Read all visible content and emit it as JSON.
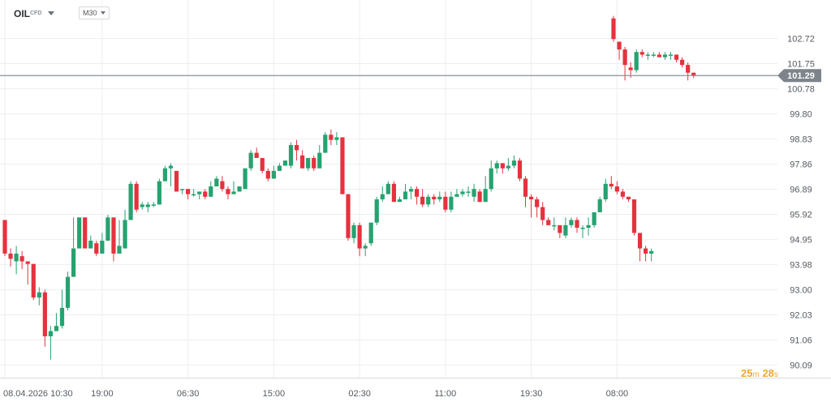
{
  "header": {
    "symbol": "OIL",
    "symbol_tag": "CFD",
    "timeframe": "M30"
  },
  "countdown": {
    "minutes": "25",
    "minutes_unit": "m",
    "seconds": "28",
    "seconds_unit": "s"
  },
  "colors": {
    "up": "#26a270",
    "down": "#e5323e",
    "grid": "#eceef1",
    "price_line": "#8a9098",
    "price_tag_bg": "#7d848c",
    "axis_text": "#555a61"
  },
  "chart_data": {
    "type": "candlestick",
    "title": "",
    "ylim": [
      89.6,
      103.9
    ],
    "y_ticks": [
      "102.72",
      "101.75",
      "100.78",
      "99.80",
      "98.83",
      "97.86",
      "96.89",
      "95.92",
      "94.95",
      "93.98",
      "93.00",
      "92.03",
      "91.06",
      "90.09"
    ],
    "x_ticks": [
      {
        "label": "08.04.2026 10:30",
        "index": 0
      },
      {
        "label": "19:00",
        "index": 17
      },
      {
        "label": "06:30",
        "index": 32
      },
      {
        "label": "15:00",
        "index": 47
      },
      {
        "label": "02:30",
        "index": 62
      },
      {
        "label": "11:00",
        "index": 77
      },
      {
        "label": "19:30",
        "index": 92
      },
      {
        "label": "08:00",
        "index": 107
      }
    ],
    "current_price": 101.29,
    "current_price_label": "101.29",
    "candles": [
      [
        95.7,
        94.4,
        95.7,
        94.3
      ],
      [
        94.4,
        94.2,
        94.6,
        93.9
      ],
      [
        94.1,
        94.4,
        94.7,
        93.6
      ],
      [
        94.3,
        94.1,
        94.5,
        93.8
      ],
      [
        94.1,
        94.0,
        94.1,
        93.2
      ],
      [
        94.0,
        92.7,
        94.0,
        92.6
      ],
      [
        92.7,
        92.9,
        93.1,
        92.4
      ],
      [
        92.9,
        91.2,
        93.0,
        90.8
      ],
      [
        91.2,
        91.4,
        91.6,
        90.3
      ],
      [
        91.4,
        91.6,
        92.1,
        91.5
      ],
      [
        91.6,
        92.3,
        93.0,
        91.5
      ],
      [
        92.3,
        93.5,
        93.7,
        92.2
      ],
      [
        93.5,
        94.6,
        95.8,
        93.5
      ],
      [
        94.6,
        95.8,
        95.8,
        94.6
      ],
      [
        95.8,
        94.6,
        95.8,
        94.6
      ],
      [
        94.6,
        94.9,
        95.1,
        94.6
      ],
      [
        94.8,
        94.4,
        94.9,
        94.3
      ],
      [
        94.4,
        94.9,
        95.2,
        94.4
      ],
      [
        94.9,
        95.8,
        95.9,
        94.9
      ],
      [
        95.8,
        94.4,
        95.8,
        94.1
      ],
      [
        94.4,
        94.7,
        95.7,
        94.6
      ],
      [
        94.6,
        95.7,
        96.1,
        94.6
      ],
      [
        95.7,
        97.1,
        97.2,
        95.7
      ],
      [
        97.1,
        96.1,
        97.2,
        96.0
      ],
      [
        96.2,
        96.3,
        96.4,
        96.1
      ],
      [
        96.2,
        96.3,
        96.4,
        96.0
      ],
      [
        96.3,
        96.3,
        96.4,
        96.2
      ],
      [
        96.3,
        97.2,
        97.3,
        96.3
      ],
      [
        97.2,
        97.7,
        97.8,
        97.3
      ],
      [
        97.7,
        97.8,
        97.9,
        97.0
      ],
      [
        97.6,
        96.8,
        97.6,
        96.8
      ],
      [
        96.9,
        96.9,
        96.9,
        96.7
      ],
      [
        96.9,
        96.7,
        96.9,
        96.5
      ],
      [
        96.7,
        96.7,
        96.9,
        96.6
      ],
      [
        96.7,
        96.8,
        96.8,
        96.5
      ],
      [
        96.8,
        96.6,
        96.9,
        96.5
      ],
      [
        96.6,
        97.0,
        97.2,
        96.6
      ],
      [
        97.0,
        97.3,
        97.4,
        97.0
      ],
      [
        97.2,
        96.9,
        97.4,
        96.8
      ],
      [
        96.9,
        96.7,
        97.0,
        96.5
      ],
      [
        96.7,
        96.8,
        97.2,
        96.7
      ],
      [
        96.8,
        97.0,
        97.0,
        96.8
      ],
      [
        96.9,
        97.7,
        97.7,
        96.9
      ],
      [
        97.7,
        98.3,
        98.4,
        97.6
      ],
      [
        98.3,
        98.1,
        98.5,
        98.1
      ],
      [
        98.1,
        97.6,
        98.1,
        97.5
      ],
      [
        97.6,
        97.3,
        97.7,
        97.2
      ],
      [
        97.3,
        97.6,
        97.8,
        97.3
      ],
      [
        97.6,
        97.8,
        97.9,
        97.7
      ],
      [
        97.8,
        98.0,
        98.0,
        97.8
      ],
      [
        97.8,
        98.6,
        98.7,
        97.7
      ],
      [
        98.6,
        98.4,
        98.8,
        98.0
      ],
      [
        98.2,
        97.7,
        98.4,
        97.7
      ],
      [
        97.7,
        98.1,
        98.1,
        97.6
      ],
      [
        98.1,
        97.7,
        98.2,
        97.6
      ],
      [
        97.7,
        98.3,
        98.6,
        97.7
      ],
      [
        98.3,
        99.0,
        99.1,
        98.3
      ],
      [
        99.0,
        98.8,
        99.2,
        98.6
      ],
      [
        98.8,
        98.9,
        99.1,
        98.6
      ],
      [
        98.9,
        96.7,
        98.9,
        96.7
      ],
      [
        96.7,
        95.0,
        96.7,
        94.9
      ],
      [
        95.0,
        95.5,
        95.6,
        94.8
      ],
      [
        95.5,
        94.6,
        95.6,
        94.3
      ],
      [
        94.6,
        94.7,
        94.8,
        94.3
      ],
      [
        94.8,
        95.6,
        95.6,
        94.7
      ],
      [
        95.6,
        96.5,
        96.6,
        95.5
      ],
      [
        96.5,
        96.7,
        97.0,
        96.4
      ],
      [
        96.7,
        97.1,
        97.2,
        96.8
      ],
      [
        97.1,
        96.4,
        97.2,
        96.4
      ],
      [
        96.4,
        96.5,
        96.6,
        96.4
      ],
      [
        96.5,
        96.8,
        97.1,
        96.6
      ],
      [
        96.8,
        96.9,
        97.0,
        96.5
      ],
      [
        96.9,
        96.6,
        97.0,
        96.3
      ],
      [
        96.6,
        96.3,
        96.9,
        96.2
      ],
      [
        96.3,
        96.6,
        96.7,
        96.2
      ],
      [
        96.6,
        96.5,
        96.7,
        96.3
      ],
      [
        96.5,
        96.6,
        96.8,
        96.4
      ],
      [
        96.6,
        96.1,
        96.8,
        96.0
      ],
      [
        96.1,
        96.6,
        96.8,
        96.0
      ],
      [
        96.6,
        96.7,
        96.9,
        96.6
      ],
      [
        96.7,
        96.8,
        96.9,
        96.6
      ],
      [
        96.8,
        96.8,
        97.0,
        96.6
      ],
      [
        96.6,
        96.9,
        97.1,
        96.4
      ],
      [
        96.8,
        96.4,
        96.9,
        96.4
      ],
      [
        96.4,
        96.9,
        97.4,
        96.4
      ],
      [
        96.9,
        97.7,
        98.0,
        96.8
      ],
      [
        97.7,
        97.9,
        98.0,
        97.5
      ],
      [
        97.9,
        97.7,
        97.9,
        97.5
      ],
      [
        97.7,
        97.8,
        98.1,
        97.6
      ],
      [
        97.8,
        98.0,
        98.2,
        97.7
      ],
      [
        98.0,
        97.3,
        98.1,
        97.2
      ],
      [
        97.3,
        96.6,
        97.4,
        96.2
      ],
      [
        96.6,
        96.5,
        96.7,
        95.8
      ],
      [
        96.5,
        96.2,
        96.6,
        95.8
      ],
      [
        96.2,
        95.7,
        96.4,
        95.5
      ],
      [
        95.7,
        95.5,
        95.8,
        95.5
      ],
      [
        95.5,
        95.5,
        95.8,
        95.3
      ],
      [
        95.5,
        95.2,
        95.5,
        95.0
      ],
      [
        95.1,
        95.5,
        95.8,
        95.0
      ],
      [
        95.5,
        95.7,
        95.8,
        95.4
      ],
      [
        95.7,
        95.4,
        95.8,
        95.2
      ],
      [
        95.4,
        95.4,
        95.5,
        95.0
      ],
      [
        95.4,
        95.5,
        95.8,
        95.1
      ],
      [
        95.5,
        96.0,
        96.0,
        95.4
      ],
      [
        96.0,
        96.5,
        96.6,
        96.0
      ],
      [
        96.5,
        97.1,
        97.3,
        96.4
      ],
      [
        97.1,
        97.0,
        97.4,
        96.9
      ],
      [
        97.0,
        96.8,
        97.2,
        96.7
      ],
      [
        96.8,
        96.6,
        96.9,
        96.5
      ],
      [
        96.6,
        96.5,
        96.6,
        96.4
      ],
      [
        96.5,
        95.2,
        96.5,
        95.1
      ],
      [
        95.2,
        94.6,
        95.2,
        94.1
      ],
      [
        94.6,
        94.4,
        94.7,
        94.1
      ],
      [
        94.4,
        94.5,
        94.6,
        94.1
      ]
    ],
    "gap_candles": [
      [
        103.5,
        102.7,
        103.6,
        102.6
      ],
      [
        102.6,
        102.3,
        102.6,
        101.9
      ],
      [
        102.3,
        101.7,
        102.4,
        101.1
      ],
      [
        101.6,
        101.5,
        101.8,
        101.2
      ],
      [
        101.5,
        102.2,
        102.3,
        101.4
      ],
      [
        102.2,
        102.1,
        102.3,
        102.0
      ],
      [
        102.1,
        102.1,
        102.2,
        101.9
      ],
      [
        102.1,
        102.1,
        102.2,
        102.0
      ],
      [
        102.1,
        102.0,
        102.2,
        102.0
      ],
      [
        102.0,
        102.1,
        102.2,
        101.9
      ],
      [
        102.1,
        102.1,
        102.2,
        101.9
      ],
      [
        102.1,
        101.9,
        102.1,
        101.8
      ],
      [
        101.9,
        101.7,
        102.0,
        101.6
      ],
      [
        101.7,
        101.4,
        101.8,
        101.1
      ],
      [
        101.4,
        101.3,
        101.4,
        101.2
      ]
    ]
  }
}
